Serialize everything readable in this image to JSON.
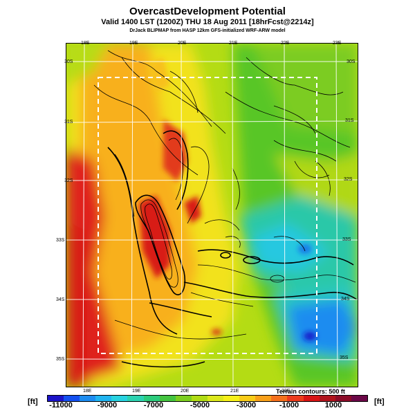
{
  "header": {
    "title": "OvercastDevelopment Potential",
    "subtitle": "Valid 1400 LST (1200Z) THU 18 Aug 2011 [18hrFcst@2214z]",
    "caption": "DrJack BLIPMAP from HASP 12km GFS-initialized WRF-ARW model"
  },
  "map": {
    "longitudes_top": [
      "18E",
      "19E",
      "20E",
      "21E",
      "22E",
      "23E"
    ],
    "longitudes_bottom": [
      "18E",
      "19E",
      "20E",
      "21E",
      "22E"
    ],
    "latitudes_left": [
      "30S",
      "31S",
      "32S",
      "33S",
      "34S",
      "35S"
    ],
    "latitudes_right": [
      "30S",
      "31S",
      "32S",
      "33S",
      "34S",
      "35S"
    ],
    "terrain_note": "Terrain contours: 500 ft",
    "colors": {
      "ocean_red": "#e0241a",
      "red": "#d81e12",
      "orange": "#f8a01a",
      "yellow": "#f2e21a",
      "lime": "#b4dc14",
      "green": "#58c628",
      "teal": "#2cc8a8",
      "cyan": "#28c8e0",
      "blue": "#1478e8",
      "deep_blue": "#1818c8"
    }
  },
  "legend": {
    "unit_left": "[ft]",
    "unit_right": "[ft]",
    "tick_labels": [
      "-11000",
      "-9000",
      "-7000",
      "-5000",
      "-3000",
      "-1000",
      "1000"
    ],
    "colors": [
      "#1c14c8",
      "#1450f0",
      "#1c8cf0",
      "#20b4f0",
      "#28d2e0",
      "#2cd2b0",
      "#2ccc7c",
      "#44c440",
      "#7cce20",
      "#b0dc14",
      "#dce81c",
      "#f6f018",
      "#f8cc18",
      "#f8a01a",
      "#f4701c",
      "#ec3c1c",
      "#d81414",
      "#b0141c",
      "#8c0c28",
      "#6c0848"
    ]
  }
}
